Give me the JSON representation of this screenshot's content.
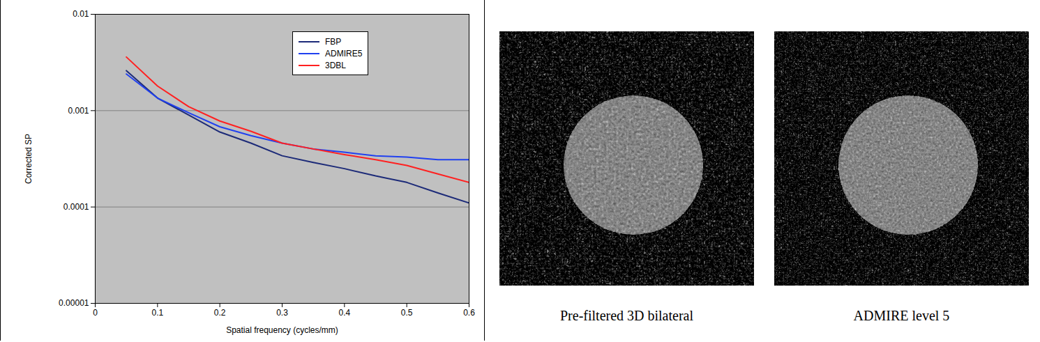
{
  "chart_data": {
    "type": "line",
    "x_label": "Spatial frequency (cycles/mm)",
    "y_label": "Corrected SP",
    "x": [
      0.05,
      0.1,
      0.15,
      0.2,
      0.25,
      0.3,
      0.35,
      0.4,
      0.45,
      0.5,
      0.55,
      0.6
    ],
    "series": [
      {
        "name": "FBP",
        "color": "#1c2a78",
        "values": [
          0.0026,
          0.00135,
          0.0009,
          0.0006,
          0.00046,
          0.00034,
          0.00029,
          0.00025,
          0.00021,
          0.00018,
          0.00014,
          0.00011
        ]
      },
      {
        "name": "ADMIRE5",
        "color": "#2040f0",
        "values": [
          0.0024,
          0.00135,
          0.00095,
          0.00068,
          0.00055,
          0.00046,
          0.0004,
          0.00037,
          0.00034,
          0.00033,
          0.00031,
          0.00031
        ]
      },
      {
        "name": "3DBL",
        "color": "#ff2020",
        "values": [
          0.0036,
          0.0018,
          0.0011,
          0.00078,
          0.00061,
          0.00046,
          0.0004,
          0.00035,
          0.00031,
          0.00027,
          0.00022,
          0.00018
        ]
      }
    ],
    "xlim": [
      0,
      0.6
    ],
    "xticks": [
      0,
      0.1,
      0.2,
      0.3,
      0.4,
      0.5,
      0.6
    ],
    "ylim": [
      1e-05,
      0.01
    ],
    "yticks": [
      1e-05,
      0.0001,
      0.001,
      0.01
    ],
    "log": "y",
    "grid": true,
    "legend": "top-right"
  },
  "panels": [
    {
      "caption": "Pre-filtered 3D bilateral"
    },
    {
      "caption": "ADMIRE level 5"
    }
  ]
}
